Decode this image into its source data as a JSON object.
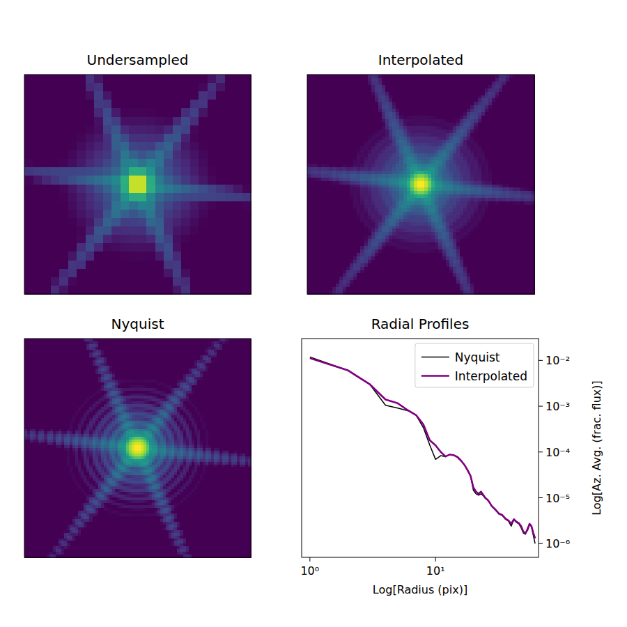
{
  "chart_data": [
    {
      "type": "image",
      "title": "Undersampled",
      "tick_labels": false
    },
    {
      "type": "image",
      "title": "Interpolated",
      "tick_labels": false
    },
    {
      "type": "image",
      "title": "Nyquist",
      "tick_labels": false
    },
    {
      "type": "line",
      "title": "Radial Profiles",
      "xlabel": "Log[Radius (pix)]",
      "ylabel": "Log[Az. Avg. (frac. flux)]",
      "log": true,
      "legend": "upper right",
      "xlim": [
        0.86,
        66
      ],
      "ylim": [
        5e-07,
        0.03
      ],
      "xticks": [
        {
          "value": 1,
          "label": "10⁰"
        },
        {
          "value": 10,
          "label": "10¹"
        }
      ],
      "yticks": [
        {
          "value": 1e-06,
          "label": "10⁻⁶"
        },
        {
          "value": 1e-05,
          "label": "10⁻⁵"
        },
        {
          "value": 0.0001,
          "label": "10⁻⁴"
        },
        {
          "value": 0.001,
          "label": "10⁻³"
        },
        {
          "value": 0.01,
          "label": "10⁻²"
        }
      ],
      "x": [
        1,
        2,
        3,
        4,
        5,
        6,
        7,
        8,
        9,
        10,
        11,
        12,
        13,
        14,
        15,
        16,
        17,
        18,
        19,
        20,
        21,
        22,
        23,
        24,
        25,
        26,
        27,
        28,
        30,
        32,
        34,
        36,
        38,
        40,
        42,
        44,
        46,
        48,
        50,
        52,
        54,
        56,
        58,
        60,
        62
      ],
      "series": [
        {
          "name": "Nyquist",
          "color": "#000000",
          "values": [
            0.0119,
            0.0061,
            0.003,
            0.00105,
            0.00091,
            0.0008,
            0.00064,
            0.00034,
            0.000141,
            6.9e-05,
            8.3e-05,
            7.9e-05,
            8.8e-05,
            8.5e-05,
            7.7e-05,
            6.4e-05,
            5.2e-05,
            3.9e-05,
            3e-05,
            1.46e-05,
            1.22e-05,
            1.14e-05,
            1.22e-05,
            1.1e-05,
            9.6e-06,
            8.9e-06,
            7.7e-06,
            6.5e-06,
            5.4e-06,
            4.4e-06,
            4.1e-06,
            3.4e-06,
            3.1e-06,
            2.4e-06,
            3.3e-06,
            2.9e-06,
            2.7e-06,
            2.2e-06,
            1.7e-06,
            1.6e-06,
            2.2e-06,
            2.7e-06,
            2.3e-06,
            1.5e-06,
            1e-06
          ]
        },
        {
          "name": "Interpolated",
          "color": "#800080",
          "values": [
            0.0112,
            0.0061,
            0.003,
            0.0014,
            0.00116,
            0.00082,
            0.00064,
            0.0004,
            0.00018,
            0.00014,
            0.0001,
            8e-05,
            8.8e-05,
            8.5e-05,
            7.7e-05,
            6.4e-05,
            5.2e-05,
            4e-05,
            3e-05,
            1.68e-05,
            1.36e-05,
            1.22e-05,
            1.36e-05,
            1.15e-05,
            9.8e-06,
            9e-06,
            7.8e-06,
            6.6e-06,
            5.5e-06,
            4.5e-06,
            4.2e-06,
            3.5e-06,
            3.2e-06,
            2.7e-06,
            3.4e-06,
            3e-06,
            2.8e-06,
            2.4e-06,
            1.8e-06,
            1.7e-06,
            2e-06,
            2.7e-06,
            2.4e-06,
            1.7e-06,
            1.3e-06
          ]
        }
      ]
    }
  ]
}
